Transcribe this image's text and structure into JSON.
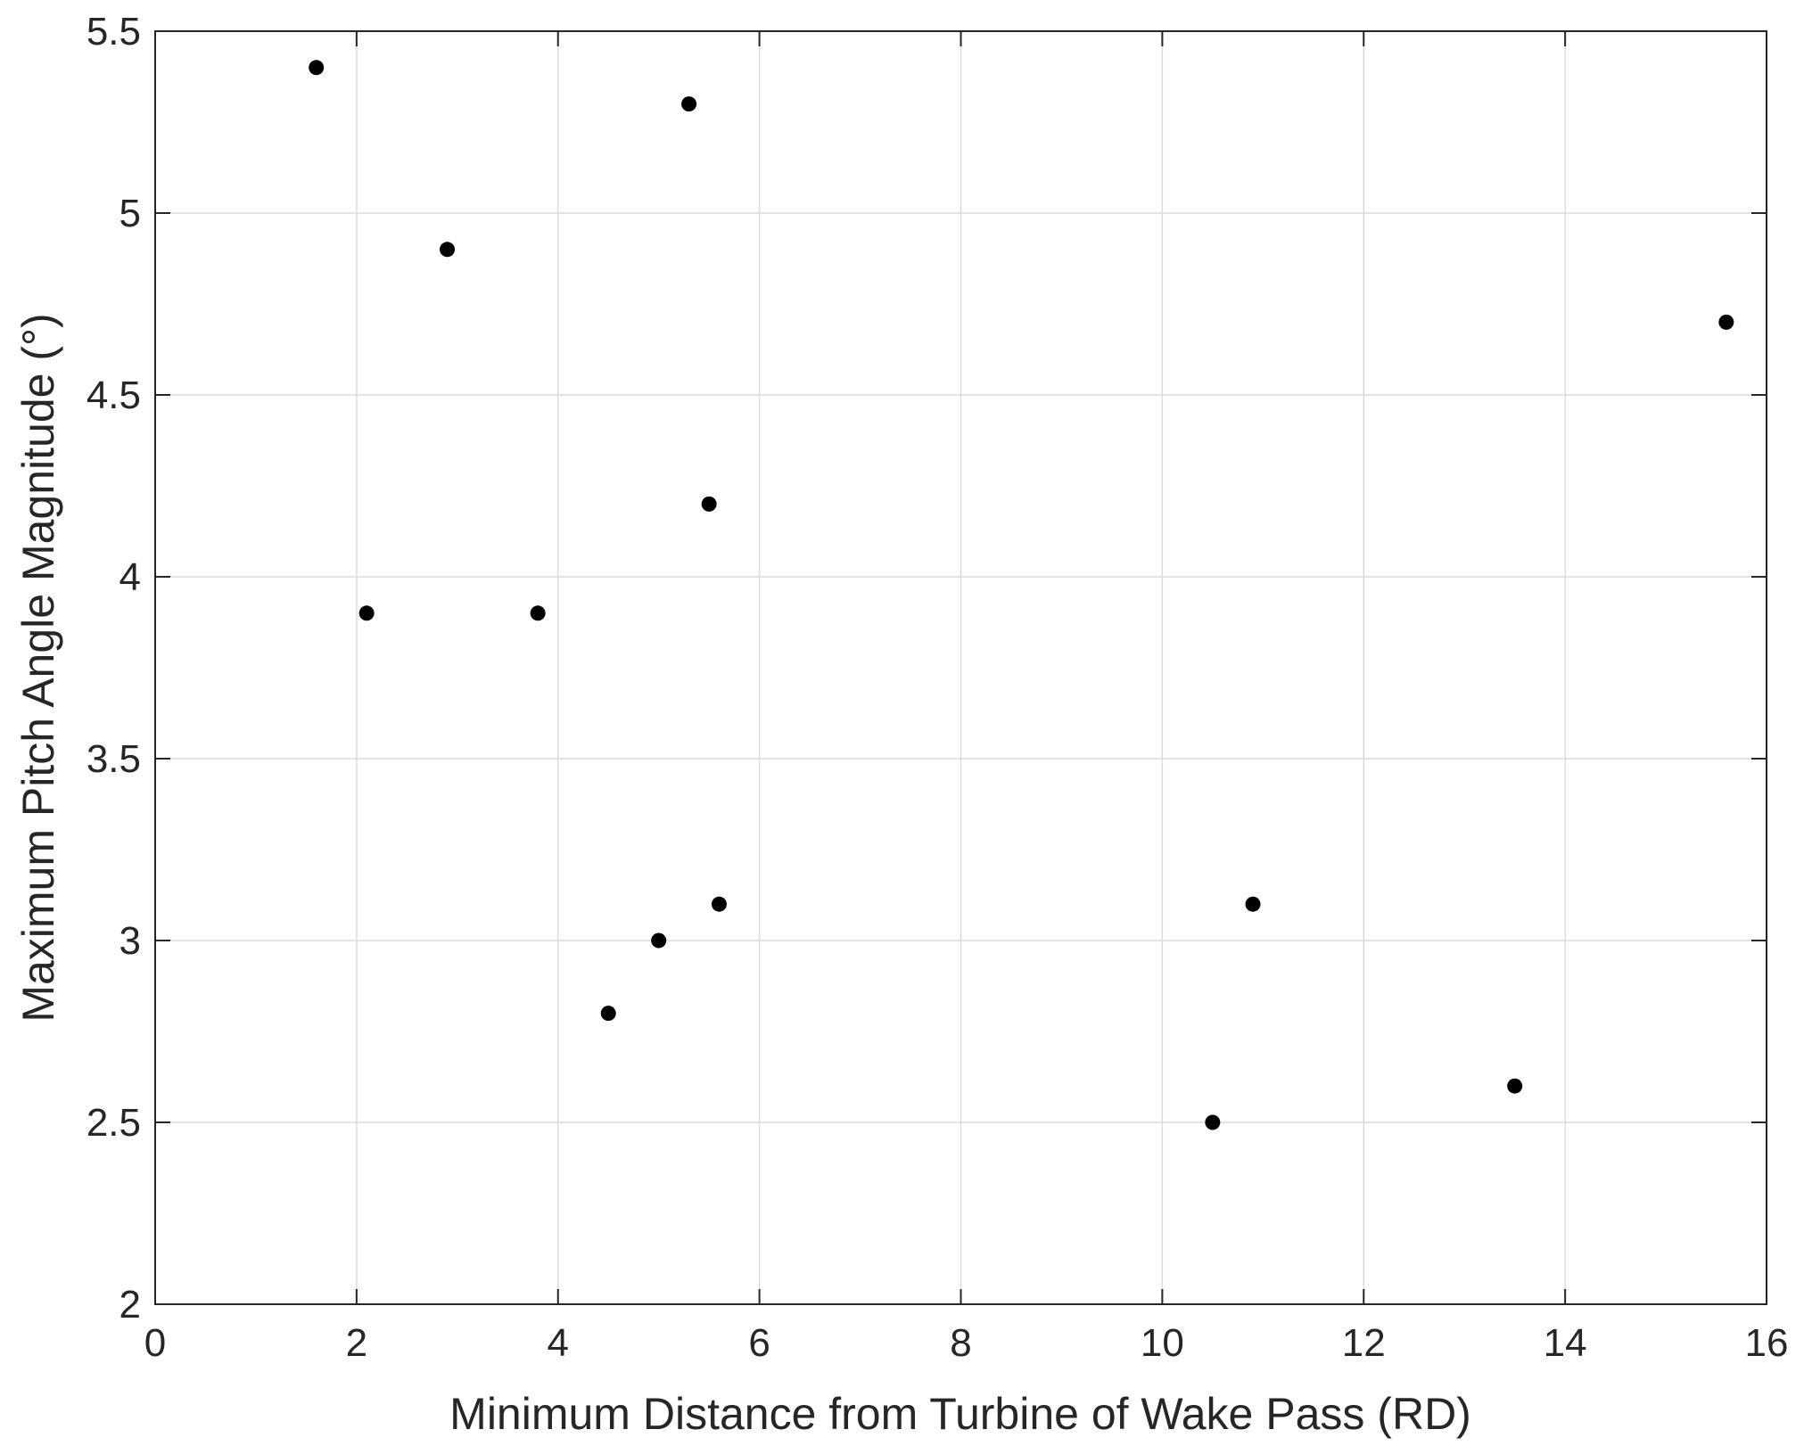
{
  "chart_data": {
    "type": "scatter",
    "xlabel": "Minimum Distance from Turbine of Wake Pass (RD)",
    "ylabel": "Maximum Pitch Angle Magnitude (°)",
    "xlim": [
      0,
      16
    ],
    "ylim": [
      2,
      5.5
    ],
    "xticks": [
      "0",
      "2",
      "4",
      "6",
      "8",
      "10",
      "12",
      "14",
      "16"
    ],
    "yticks": [
      "2",
      "2.5",
      "3",
      "3.5",
      "4",
      "4.5",
      "5",
      "5.5"
    ],
    "grid": true,
    "marker_color": "#000000",
    "points": [
      {
        "x": 1.6,
        "y": 5.4
      },
      {
        "x": 2.1,
        "y": 3.9
      },
      {
        "x": 2.9,
        "y": 4.9
      },
      {
        "x": 3.8,
        "y": 3.9
      },
      {
        "x": 4.5,
        "y": 2.8
      },
      {
        "x": 5.0,
        "y": 3.0
      },
      {
        "x": 5.3,
        "y": 5.3
      },
      {
        "x": 5.5,
        "y": 4.2
      },
      {
        "x": 5.6,
        "y": 3.1
      },
      {
        "x": 10.5,
        "y": 2.5
      },
      {
        "x": 10.9,
        "y": 3.1
      },
      {
        "x": 13.5,
        "y": 2.6
      },
      {
        "x": 15.6,
        "y": 4.7
      }
    ]
  }
}
